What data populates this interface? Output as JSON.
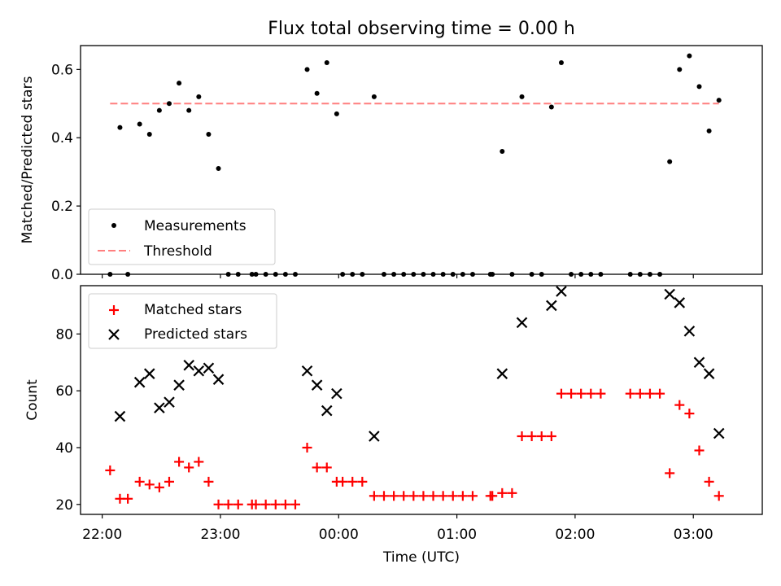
{
  "figure": {
    "title": "Flux total observing time = 0.00 h"
  },
  "chart_data": [
    {
      "type": "scatter",
      "title": "Flux total observing time = 0.00 h",
      "xlabel": "",
      "ylabel": "Matched/Predicted stars",
      "x_axis": "shared time axis (UTC)",
      "ylim": [
        0,
        0.67
      ],
      "yticks": [
        0.0,
        0.2,
        0.4,
        0.6
      ],
      "ytick_labels": [
        "0.0",
        "0.2",
        "0.4",
        "0.6"
      ],
      "legend_position": "lower-left",
      "threshold": 0.5,
      "series": [
        {
          "name": "Measurements",
          "style": "dot",
          "color": "#000000",
          "points": [
            [
              "22:04",
              0.0
            ],
            [
              "22:09",
              0.43
            ],
            [
              "22:13",
              0.0
            ],
            [
              "22:19",
              0.44
            ],
            [
              "22:24",
              0.41
            ],
            [
              "22:29",
              0.48
            ],
            [
              "22:34",
              0.5
            ],
            [
              "22:39",
              0.56
            ],
            [
              "22:44",
              0.48
            ],
            [
              "22:49",
              0.52
            ],
            [
              "22:54",
              0.41
            ],
            [
              "22:59",
              0.31
            ],
            [
              "23:04",
              0.0
            ],
            [
              "23:09",
              0.0
            ],
            [
              "23:16",
              0.0
            ],
            [
              "23:18",
              0.0
            ],
            [
              "23:23",
              0.0
            ],
            [
              "23:28",
              0.0
            ],
            [
              "23:33",
              0.0
            ],
            [
              "23:38",
              0.0
            ],
            [
              "23:44",
              0.6
            ],
            [
              "23:49",
              0.53
            ],
            [
              "23:54",
              0.62
            ],
            [
              "23:59",
              0.47
            ],
            [
              "00:02",
              0.0
            ],
            [
              "00:07",
              0.0
            ],
            [
              "00:12",
              0.0
            ],
            [
              "00:18",
              0.52
            ],
            [
              "00:23",
              0.0
            ],
            [
              "00:28",
              0.0
            ],
            [
              "00:33",
              0.0
            ],
            [
              "00:38",
              0.0
            ],
            [
              "00:43",
              0.0
            ],
            [
              "00:48",
              0.0
            ],
            [
              "00:53",
              0.0
            ],
            [
              "00:58",
              0.0
            ],
            [
              "01:03",
              0.0
            ],
            [
              "01:08",
              0.0
            ],
            [
              "01:17",
              0.0
            ],
            [
              "01:18",
              0.0
            ],
            [
              "01:23",
              0.36
            ],
            [
              "01:28",
              0.0
            ],
            [
              "01:33",
              0.52
            ],
            [
              "01:38",
              0.0
            ],
            [
              "01:43",
              0.0
            ],
            [
              "01:48",
              0.49
            ],
            [
              "01:53",
              0.62
            ],
            [
              "01:58",
              0.0
            ],
            [
              "02:03",
              0.0
            ],
            [
              "02:08",
              0.0
            ],
            [
              "02:13",
              0.0
            ],
            [
              "02:28",
              0.0
            ],
            [
              "02:33",
              0.0
            ],
            [
              "02:38",
              0.0
            ],
            [
              "02:43",
              0.0
            ],
            [
              "02:48",
              0.33
            ],
            [
              "02:53",
              0.6
            ],
            [
              "02:58",
              0.64
            ],
            [
              "03:03",
              0.55
            ],
            [
              "03:08",
              0.42
            ],
            [
              "03:13",
              0.51
            ]
          ]
        },
        {
          "name": "Threshold",
          "style": "dashed-line",
          "color": "#ff7f7f",
          "x_range": [
            "22:04",
            "03:13"
          ],
          "y": 0.5
        }
      ]
    },
    {
      "type": "scatter",
      "title": "",
      "xlabel": "Time (UTC)",
      "ylabel": "Count",
      "ylim": [
        16.5,
        97
      ],
      "yticks": [
        20,
        40,
        60,
        80
      ],
      "ytick_labels": [
        "20",
        "40",
        "60",
        "80"
      ],
      "xlim": [
        "21:49",
        "03:35"
      ],
      "xticks": [
        "22:00",
        "23:00",
        "00:00",
        "01:00",
        "02:00",
        "03:00"
      ],
      "xtick_labels": [
        "22:00",
        "23:00",
        "00:00",
        "01:00",
        "02:00",
        "03:00"
      ],
      "legend_position": "upper-left",
      "series": [
        {
          "name": "Matched stars",
          "marker": "plus",
          "color": "#ff0000",
          "points": [
            [
              "22:04",
              32
            ],
            [
              "22:09",
              22
            ],
            [
              "22:13",
              22
            ],
            [
              "22:19",
              28
            ],
            [
              "22:24",
              27
            ],
            [
              "22:29",
              26
            ],
            [
              "22:34",
              28
            ],
            [
              "22:39",
              35
            ],
            [
              "22:44",
              33
            ],
            [
              "22:49",
              35
            ],
            [
              "22:54",
              28
            ],
            [
              "22:59",
              20
            ],
            [
              "23:04",
              20
            ],
            [
              "23:09",
              20
            ],
            [
              "23:16",
              20
            ],
            [
              "23:18",
              20
            ],
            [
              "23:23",
              20
            ],
            [
              "23:28",
              20
            ],
            [
              "23:33",
              20
            ],
            [
              "23:38",
              20
            ],
            [
              "23:44",
              40
            ],
            [
              "23:49",
              33
            ],
            [
              "23:54",
              33
            ],
            [
              "23:59",
              28
            ],
            [
              "00:02",
              28
            ],
            [
              "00:07",
              28
            ],
            [
              "00:12",
              28
            ],
            [
              "00:18",
              23
            ],
            [
              "00:23",
              23
            ],
            [
              "00:28",
              23
            ],
            [
              "00:33",
              23
            ],
            [
              "00:38",
              23
            ],
            [
              "00:43",
              23
            ],
            [
              "00:48",
              23
            ],
            [
              "00:53",
              23
            ],
            [
              "00:58",
              23
            ],
            [
              "01:03",
              23
            ],
            [
              "01:08",
              23
            ],
            [
              "01:17",
              23
            ],
            [
              "01:18",
              23
            ],
            [
              "01:23",
              24
            ],
            [
              "01:28",
              24
            ],
            [
              "01:33",
              44
            ],
            [
              "01:38",
              44
            ],
            [
              "01:43",
              44
            ],
            [
              "01:48",
              44
            ],
            [
              "01:53",
              59
            ],
            [
              "01:58",
              59
            ],
            [
              "02:03",
              59
            ],
            [
              "02:08",
              59
            ],
            [
              "02:13",
              59
            ],
            [
              "02:28",
              59
            ],
            [
              "02:33",
              59
            ],
            [
              "02:38",
              59
            ],
            [
              "02:43",
              59
            ],
            [
              "02:48",
              31
            ],
            [
              "02:53",
              55
            ],
            [
              "02:58",
              52
            ],
            [
              "03:03",
              39
            ],
            [
              "03:08",
              28
            ],
            [
              "03:13",
              23
            ]
          ]
        },
        {
          "name": "Predicted stars",
          "marker": "x",
          "color": "#000000",
          "points": [
            [
              "22:09",
              51
            ],
            [
              "22:19",
              63
            ],
            [
              "22:24",
              66
            ],
            [
              "22:29",
              54
            ],
            [
              "22:34",
              56
            ],
            [
              "22:39",
              62
            ],
            [
              "22:44",
              69
            ],
            [
              "22:49",
              67
            ],
            [
              "22:54",
              68
            ],
            [
              "22:59",
              64
            ],
            [
              "23:44",
              67
            ],
            [
              "23:49",
              62
            ],
            [
              "23:54",
              53
            ],
            [
              "23:59",
              59
            ],
            [
              "00:18",
              44
            ],
            [
              "01:23",
              66
            ],
            [
              "01:33",
              84
            ],
            [
              "01:48",
              90
            ],
            [
              "01:53",
              95
            ],
            [
              "02:48",
              94
            ],
            [
              "02:53",
              91
            ],
            [
              "02:58",
              81
            ],
            [
              "03:03",
              70
            ],
            [
              "03:08",
              66
            ],
            [
              "03:13",
              45
            ]
          ]
        }
      ]
    }
  ]
}
